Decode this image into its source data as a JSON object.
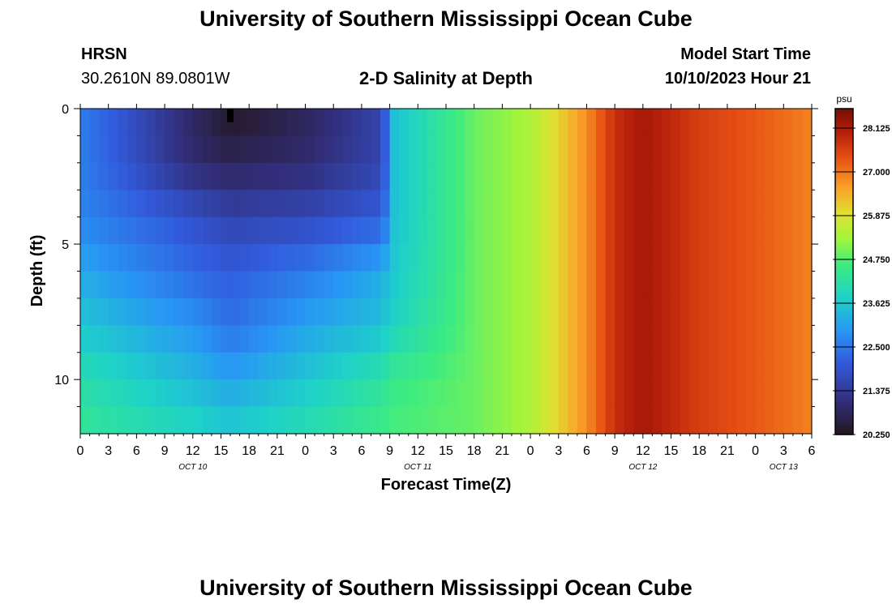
{
  "page": {
    "title": "University of Southern Mississippi Ocean Cube",
    "footer_title": "University of Southern Mississippi Ocean Cube",
    "station": "HRSN",
    "coords": "30.2610N  89.0801W",
    "plot_title": "2-D Salinity at Depth",
    "model_start_label": "Model Start Time",
    "model_start_value": "10/10/2023 Hour 21"
  },
  "chart_data": {
    "type": "heatmap",
    "title": "2-D Salinity at Depth",
    "xlabel": "Forecast Time(Z)",
    "ylabel": "Depth (ft)",
    "x_hours_from_start": [
      0,
      78
    ],
    "x_start": "OCT 10 00Z",
    "x_ticks": [
      "0",
      "3",
      "6",
      "9",
      "12",
      "15",
      "18",
      "21",
      "0",
      "3",
      "6",
      "9",
      "12",
      "15",
      "18",
      "21",
      "0",
      "3",
      "6",
      "9",
      "12",
      "15",
      "18",
      "21",
      "0",
      "3",
      "6"
    ],
    "x_day_labels": [
      "OCT 10",
      "OCT 11",
      "OCT 12",
      "OCT 13"
    ],
    "y_ticks": [
      "0",
      "5",
      "10"
    ],
    "ylim": [
      0,
      12
    ],
    "colorbar": {
      "unit": "psu",
      "min": 20.25,
      "max": 28.625,
      "tick_labels": [
        "28.125",
        "27.000",
        "25.875",
        "24.750",
        "23.625",
        "22.500",
        "21.375",
        "20.250"
      ]
    },
    "missing_cell": {
      "hour": 16,
      "depth_ft": 0.5
    },
    "time_series_hours": [
      0,
      12,
      16,
      24,
      32,
      33,
      33.3,
      42,
      48,
      54,
      57,
      60,
      66,
      72,
      78
    ],
    "depth_series_ft": [
      0,
      2,
      4,
      6,
      8,
      10,
      12
    ],
    "salinity_psu": [
      [
        22.6,
        20.9,
        20.3,
        20.8,
        21.6,
        22.7,
        23.5,
        24.9,
        25.4,
        26.8,
        27.8,
        28.2,
        27.6,
        27.3,
        26.9
      ],
      [
        22.6,
        21.0,
        20.8,
        21.0,
        21.6,
        22.6,
        23.5,
        24.9,
        25.4,
        26.8,
        27.8,
        28.2,
        27.6,
        27.3,
        26.9
      ],
      [
        22.7,
        21.9,
        21.6,
        21.7,
        22.1,
        22.8,
        23.5,
        24.9,
        25.4,
        26.8,
        27.8,
        28.2,
        27.6,
        27.3,
        26.9
      ],
      [
        23.2,
        22.3,
        22.1,
        22.5,
        23.2,
        23.5,
        23.6,
        24.9,
        25.4,
        26.8,
        27.8,
        28.2,
        27.6,
        27.3,
        26.9
      ],
      [
        23.6,
        22.9,
        22.4,
        23.1,
        23.5,
        23.7,
        23.8,
        24.9,
        25.4,
        26.8,
        27.8,
        28.2,
        27.6,
        27.3,
        26.9
      ],
      [
        24.1,
        23.4,
        23.1,
        23.6,
        24.2,
        24.4,
        24.5,
        24.9,
        25.4,
        26.8,
        27.8,
        28.2,
        27.6,
        27.3,
        26.9
      ],
      [
        24.4,
        23.9,
        23.7,
        24.1,
        24.6,
        24.7,
        24.7,
        24.9,
        25.4,
        26.8,
        27.8,
        28.2,
        27.6,
        27.3,
        26.9
      ]
    ]
  }
}
